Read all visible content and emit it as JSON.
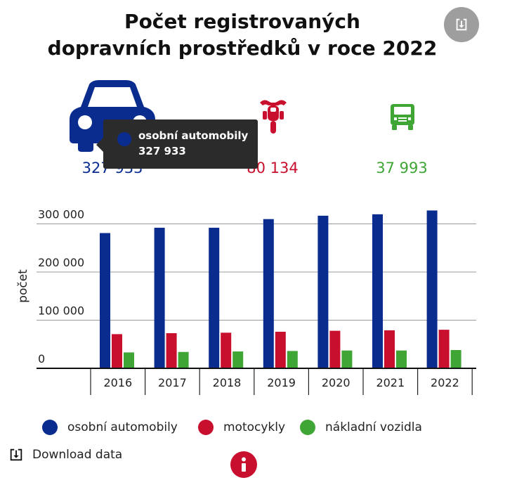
{
  "header": {
    "title_line1": "Počet registrovaných",
    "title_line2": "dopravních prostředků v roce 2022"
  },
  "stats": [
    {
      "icon": "car-icon",
      "value": "327 933",
      "color": "#0b2c8f"
    },
    {
      "icon": "motorcycle-icon",
      "value": "80 134",
      "color": "#c8102e"
    },
    {
      "icon": "truck-icon",
      "value": "37 993",
      "color": "#3fa535"
    }
  ],
  "tooltip": {
    "name": "osobní automobily",
    "value": "327 933"
  },
  "download": {
    "label": "Download data"
  },
  "chart_data": {
    "type": "bar",
    "categories": [
      "2016",
      "2017",
      "2018",
      "2019",
      "2020",
      "2021",
      "2022"
    ],
    "series": [
      {
        "name": "osobní automobily",
        "color": "#0b2c8f",
        "values": [
          281000,
          292000,
          292000,
          310000,
          317000,
          320000,
          327933
        ]
      },
      {
        "name": "motocykly",
        "color": "#c8102e",
        "values": [
          71000,
          73000,
          74000,
          76000,
          78000,
          79000,
          80134
        ]
      },
      {
        "name": "nákladní vozidla",
        "color": "#3fa535",
        "values": [
          33000,
          34000,
          35000,
          36000,
          37000,
          37000,
          37993
        ]
      }
    ],
    "ylabel": "počet",
    "ylim": [
      0,
      330000
    ],
    "yticks": [
      0,
      100000,
      200000,
      300000
    ],
    "ytick_labels": [
      "0",
      "100 000",
      "200 000",
      "300 000"
    ],
    "grid": true,
    "legend": "bottom"
  }
}
